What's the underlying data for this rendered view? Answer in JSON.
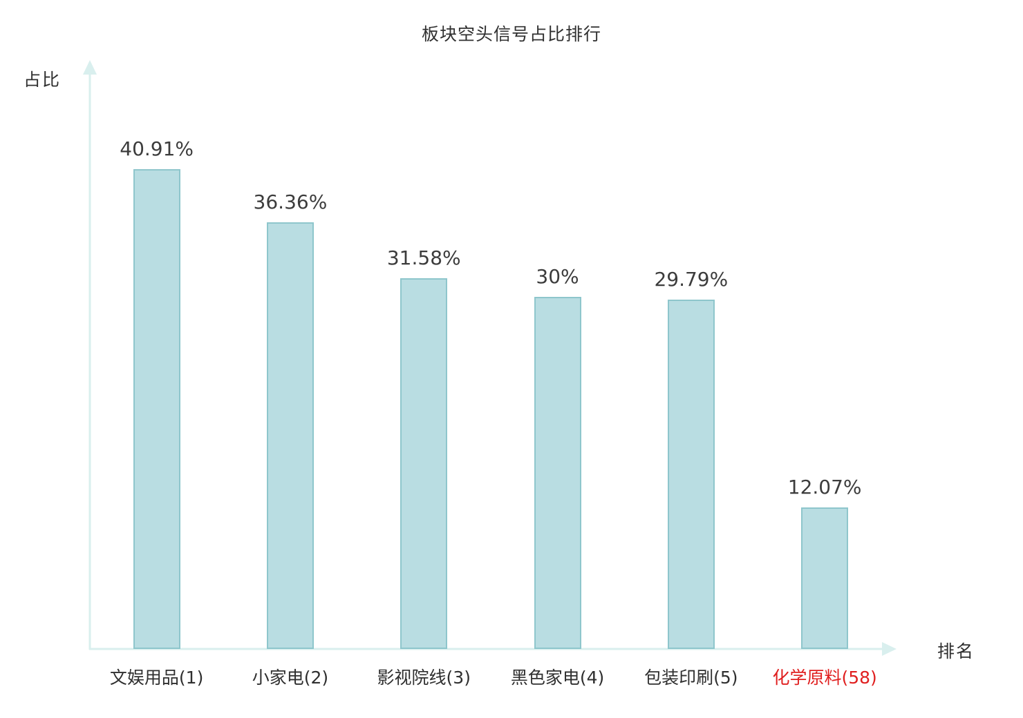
{
  "chart_data": {
    "type": "bar",
    "title": "板块空头信号占比排行",
    "xlabel": "排名",
    "ylabel": "占比",
    "categories": [
      "文娱用品(1)",
      "小家电(2)",
      "影视院线(3)",
      "黑色家电(4)",
      "包装印刷(5)",
      "化学原料(58)"
    ],
    "values": [
      40.91,
      36.36,
      31.58,
      30,
      29.79,
      12.07
    ],
    "value_labels": [
      "40.91%",
      "36.36%",
      "31.58%",
      "30%",
      "29.79%",
      "12.07%"
    ],
    "ylim": [
      0,
      45
    ],
    "grid": false,
    "legend": "none",
    "highlight_index": 5,
    "colors": {
      "bar_fill": "#b9dde2",
      "bar_border": "#8ec6cc",
      "axis": "#d9efee",
      "text": "#3c3c3c",
      "highlight_text": "#e01f1f"
    }
  }
}
